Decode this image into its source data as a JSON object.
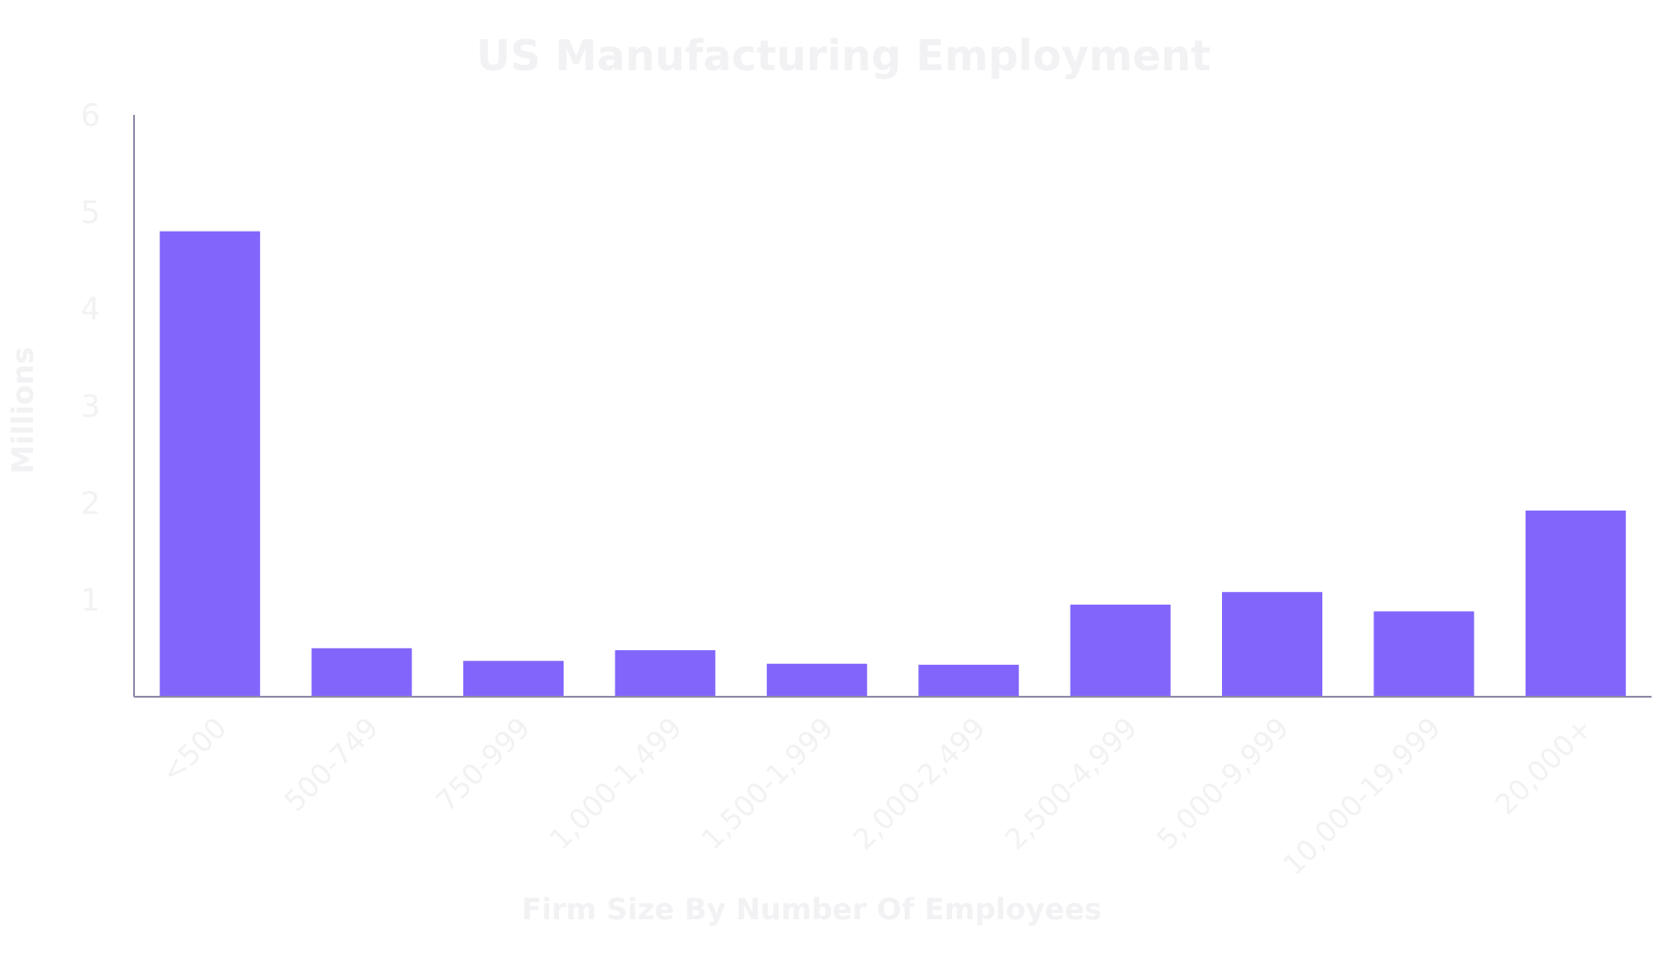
{
  "chart_data": {
    "type": "bar",
    "title": "US Manufacturing Employment",
    "xlabel": "Firm Size By Number Of Employees",
    "ylabel": "Millions",
    "categories": [
      "<500",
      "500-749",
      "750-999",
      "1,000-1,499",
      "1,500-1,999",
      "2,000-2,499",
      "2,500-4,999",
      "5,000-9,999",
      "10,000-19,999",
      "20,000+"
    ],
    "values": [
      4.8,
      0.5,
      0.37,
      0.48,
      0.34,
      0.33,
      0.95,
      1.08,
      0.88,
      1.92
    ],
    "ylim": [
      0,
      6
    ],
    "yticks": [
      "1",
      "2",
      "3",
      "4",
      "5",
      "6"
    ],
    "grid": false,
    "legend": "none",
    "colors": {
      "bar": "#8266fc",
      "axis": "#8e8aa8",
      "text": "#f2f2f4"
    }
  }
}
